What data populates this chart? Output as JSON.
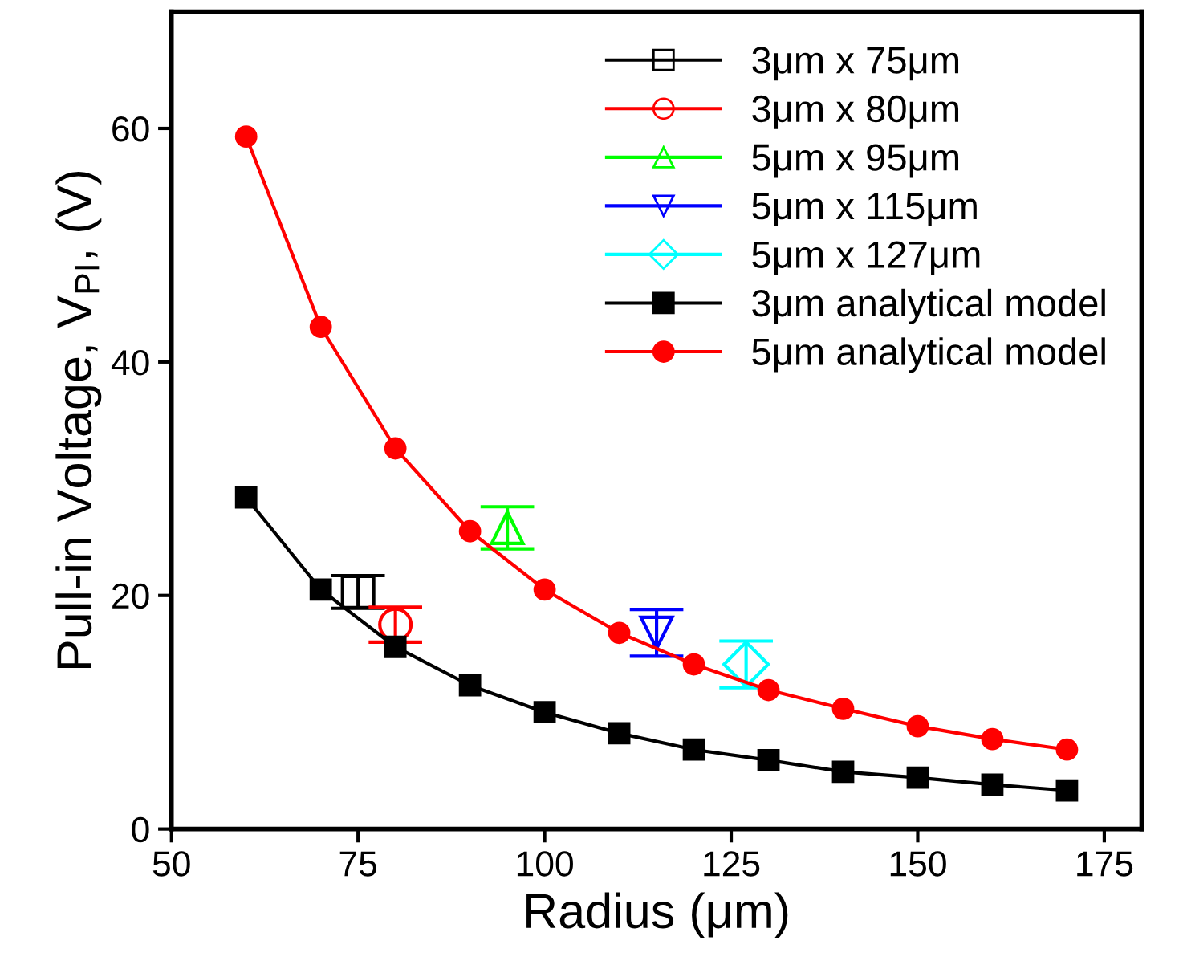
{
  "chart_data": {
    "type": "line",
    "xlabel": "Radius (μm)",
    "ylabel": "Pull-in Voltage, V$_{PI}$, (V)",
    "xlim": [
      50,
      180
    ],
    "xticks": [
      50,
      75,
      100,
      125,
      150,
      175
    ],
    "ylim": [
      0,
      70
    ],
    "yticks": [
      0,
      20,
      40,
      60
    ],
    "grid": false,
    "legend": "top right",
    "line_style": "solid",
    "series": [
      {
        "name": "3μm x 75μm",
        "type": "scatter",
        "marker": "square",
        "color": "#000000",
        "x": [
          75
        ],
        "values": [
          20.3
        ],
        "errors": [
          1.4
        ]
      },
      {
        "name": "3μm x 80μm",
        "type": "scatter",
        "marker": "circle",
        "color": "#ff0000",
        "x": [
          80
        ],
        "values": [
          17.5
        ],
        "errors": [
          1.5
        ]
      },
      {
        "name": "5μm x 95μm",
        "type": "scatter",
        "marker": "triangle",
        "color": "#00ff00",
        "x": [
          95
        ],
        "values": [
          25.8
        ],
        "errors": [
          1.8
        ]
      },
      {
        "name": "5μm x 115μm",
        "type": "scatter",
        "marker": "triangle_down",
        "color": "#0000ff",
        "x": [
          115
        ],
        "values": [
          16.8
        ],
        "errors": [
          2.0
        ]
      },
      {
        "name": "5μm x 127μm",
        "type": "scatter",
        "marker": "diamond",
        "color": "#00ffff",
        "x": [
          127
        ],
        "values": [
          14.1
        ],
        "errors": [
          2.0
        ]
      },
      {
        "name": "3μm analytical model",
        "marker": "square",
        "color": "#000000",
        "x": [
          60,
          70,
          80,
          90,
          100,
          110,
          120,
          130,
          140,
          150,
          160,
          170
        ],
        "values": [
          28.4,
          20.5,
          15.6,
          12.3,
          10.0,
          8.2,
          6.8,
          5.9,
          4.9,
          4.4,
          3.8,
          3.3
        ]
      },
      {
        "name": "5μm analytical model",
        "marker": "circle",
        "color": "#ff0000",
        "x": [
          60,
          70,
          80,
          90,
          100,
          110,
          120,
          130,
          140,
          150,
          160,
          170
        ],
        "values": [
          59.3,
          43.0,
          32.6,
          25.5,
          20.5,
          16.8,
          14.1,
          11.9,
          10.3,
          8.8,
          7.7,
          6.8
        ]
      }
    ]
  }
}
